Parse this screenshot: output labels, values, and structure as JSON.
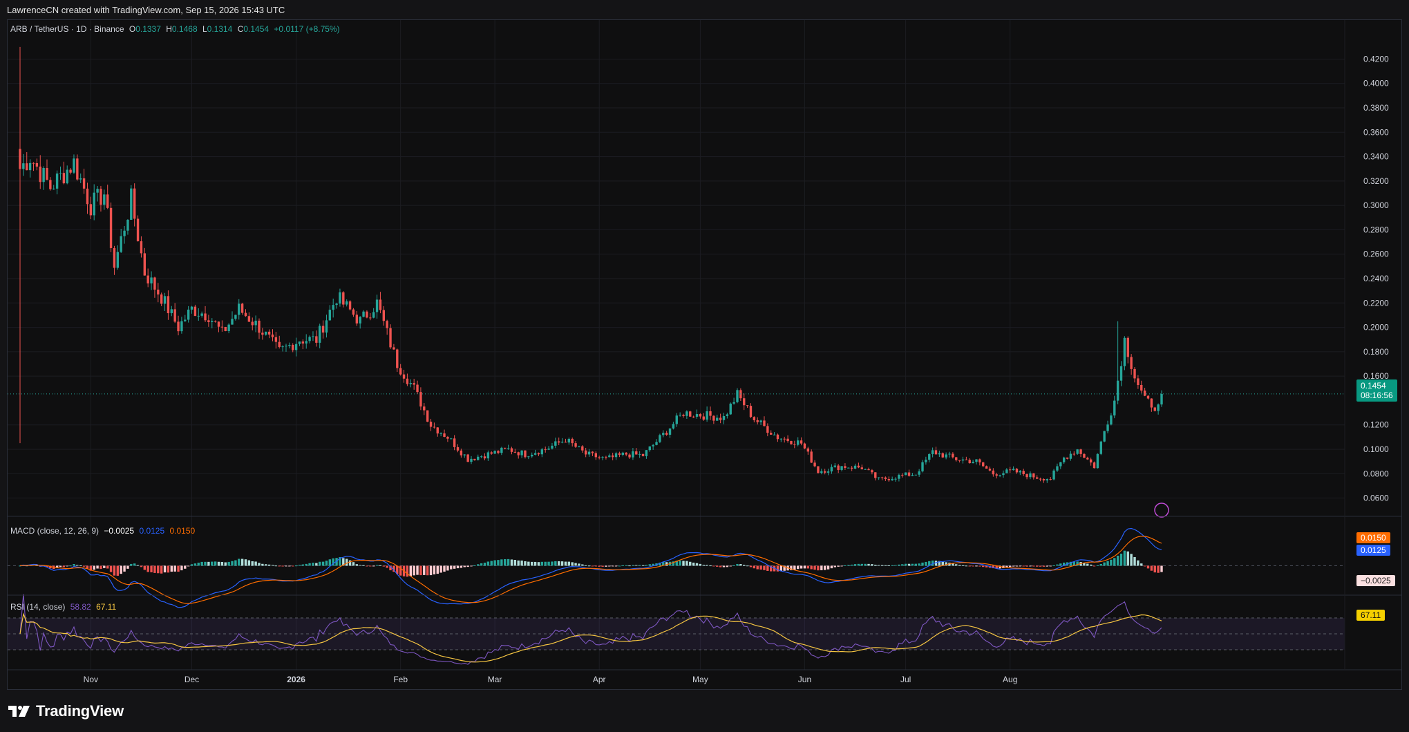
{
  "header": {
    "credit": "LawrenceCN created with TradingView.com, Sep 15, 2026 15:43 UTC"
  },
  "legend": {
    "symbol": "ARB / TetherUS · 1D · Binance",
    "o_label": "O",
    "o_value": "0.1337",
    "h_label": "H",
    "h_value": "0.1468",
    "l_label": "L",
    "l_value": "0.1314",
    "c_label": "C",
    "c_value": "0.1454",
    "change": "+0.0117 (+8.75%)"
  },
  "macd_legend": {
    "label": "MACD (close, 12, 26, 9)",
    "hist": "−0.0025",
    "macd": "0.0125",
    "signal": "0.0150"
  },
  "rsi_legend": {
    "label": "RSI (14, close)",
    "rsi": "58.82",
    "ma": "67.11"
  },
  "price_tag": {
    "price": "0.1454",
    "countdown": "08:16:56"
  },
  "macd_tags": {
    "signal": "0.0150",
    "macd": "0.0125",
    "hist": "−0.0025"
  },
  "rsi_tag": "67.11",
  "footer": {
    "brand": "TradingView"
  },
  "colors": {
    "up": "#26a69a",
    "down": "#ef5350",
    "macd_line": "#2962ff",
    "signal_line": "#ff6d00",
    "rsi_line": "#7e57c2",
    "rsi_ma": "#f5c542",
    "background": "#0f0f10",
    "grid": "#1c1d22"
  },
  "chart_data": [
    {
      "type": "candlestick",
      "title": "ARB / TetherUS · 1D · Binance",
      "y_axis_ticks": [
        "0.4200",
        "0.4000",
        "0.3800",
        "0.3600",
        "0.3400",
        "0.3200",
        "0.3000",
        "0.2800",
        "0.2600",
        "0.2400",
        "0.2200",
        "0.2000",
        "0.1800",
        "0.1600",
        "0.1200",
        "0.1000",
        "0.0800",
        "0.0600"
      ],
      "ylim": [
        0.045,
        0.435
      ],
      "x_axis_labels": [
        "Nov",
        "Dec",
        "2026",
        "Feb",
        "Mar",
        "Apr",
        "May",
        "Jun",
        "Jul",
        "Aug"
      ],
      "current_price": 0.1454,
      "close_anchors": [
        {
          "date": "2025-10-11",
          "close": 0.33
        },
        {
          "date": "2025-10-14",
          "close": 0.34
        },
        {
          "date": "2025-10-20",
          "close": 0.315
        },
        {
          "date": "2025-10-27",
          "close": 0.335
        },
        {
          "date": "2025-11-01",
          "close": 0.3
        },
        {
          "date": "2025-11-05",
          "close": 0.31
        },
        {
          "date": "2025-11-08",
          "close": 0.25
        },
        {
          "date": "2025-11-13",
          "close": 0.305
        },
        {
          "date": "2025-11-17",
          "close": 0.245
        },
        {
          "date": "2025-11-22",
          "close": 0.225
        },
        {
          "date": "2025-11-27",
          "close": 0.2
        },
        {
          "date": "2025-12-01",
          "close": 0.215
        },
        {
          "date": "2025-12-06",
          "close": 0.21
        },
        {
          "date": "2025-12-10",
          "close": 0.195
        },
        {
          "date": "2025-12-15",
          "close": 0.215
        },
        {
          "date": "2025-12-21",
          "close": 0.2
        },
        {
          "date": "2025-12-27",
          "close": 0.18
        },
        {
          "date": "2026-01-02",
          "close": 0.19
        },
        {
          "date": "2026-01-07",
          "close": 0.19
        },
        {
          "date": "2026-01-13",
          "close": 0.225
        },
        {
          "date": "2026-01-20",
          "close": 0.205
        },
        {
          "date": "2026-01-25",
          "close": 0.22
        },
        {
          "date": "2026-01-31",
          "close": 0.17
        },
        {
          "date": "2026-02-05",
          "close": 0.15
        },
        {
          "date": "2026-02-10",
          "close": 0.12
        },
        {
          "date": "2026-02-15",
          "close": 0.11
        },
        {
          "date": "2026-02-21",
          "close": 0.092
        },
        {
          "date": "2026-02-27",
          "close": 0.096
        },
        {
          "date": "2026-03-05",
          "close": 0.1
        },
        {
          "date": "2026-03-10",
          "close": 0.096
        },
        {
          "date": "2026-03-16",
          "close": 0.1
        },
        {
          "date": "2026-03-22",
          "close": 0.108
        },
        {
          "date": "2026-03-28",
          "close": 0.096
        },
        {
          "date": "2026-04-03",
          "close": 0.092
        },
        {
          "date": "2026-04-09",
          "close": 0.096
        },
        {
          "date": "2026-04-14",
          "close": 0.095
        },
        {
          "date": "2026-04-20",
          "close": 0.112
        },
        {
          "date": "2026-04-26",
          "close": 0.13
        },
        {
          "date": "2026-05-02",
          "close": 0.128
        },
        {
          "date": "2026-05-08",
          "close": 0.126
        },
        {
          "date": "2026-05-12",
          "close": 0.145
        },
        {
          "date": "2026-05-17",
          "close": 0.125
        },
        {
          "date": "2026-05-24",
          "close": 0.11
        },
        {
          "date": "2026-05-31",
          "close": 0.105
        },
        {
          "date": "2026-06-05",
          "close": 0.082
        },
        {
          "date": "2026-06-12",
          "close": 0.086
        },
        {
          "date": "2026-06-18",
          "close": 0.085
        },
        {
          "date": "2026-06-23",
          "close": 0.075
        },
        {
          "date": "2026-06-29",
          "close": 0.078
        },
        {
          "date": "2026-07-04",
          "close": 0.08
        },
        {
          "date": "2026-07-09",
          "close": 0.098
        },
        {
          "date": "2026-07-16",
          "close": 0.092
        },
        {
          "date": "2026-07-22",
          "close": 0.09
        },
        {
          "date": "2026-07-27",
          "close": 0.08
        },
        {
          "date": "2026-08-02",
          "close": 0.082
        },
        {
          "date": "2026-08-09",
          "close": 0.077
        },
        {
          "date": "2026-08-13",
          "close": 0.076
        },
        {
          "date": "2026-08-17",
          "close": 0.093
        },
        {
          "date": "2026-08-21",
          "close": 0.1
        },
        {
          "date": "2026-08-26",
          "close": 0.086
        },
        {
          "date": "2026-08-29",
          "close": 0.115
        },
        {
          "date": "2026-09-01",
          "close": 0.14
        },
        {
          "date": "2026-09-04",
          "close": 0.19
        },
        {
          "date": "2026-09-07",
          "close": 0.16
        },
        {
          "date": "2026-09-10",
          "close": 0.14
        },
        {
          "date": "2026-09-14",
          "close": 0.134
        },
        {
          "date": "2026-09-15",
          "close": 0.1454
        }
      ]
    },
    {
      "type": "line",
      "title": "MACD (close, 12, 26, 9)",
      "series": [
        {
          "name": "MACD",
          "last": 0.0125
        },
        {
          "name": "Signal",
          "last": 0.015
        },
        {
          "name": "Histogram",
          "last": -0.0025
        }
      ],
      "y_axis_ticks": [
        "0.0150",
        "0.0125",
        "-0.0025"
      ]
    },
    {
      "type": "line",
      "title": "RSI (14, close)",
      "series": [
        {
          "name": "RSI",
          "last": 58.82
        },
        {
          "name": "RSI MA",
          "last": 67.11
        }
      ],
      "bands": [
        70,
        50,
        30
      ]
    }
  ]
}
